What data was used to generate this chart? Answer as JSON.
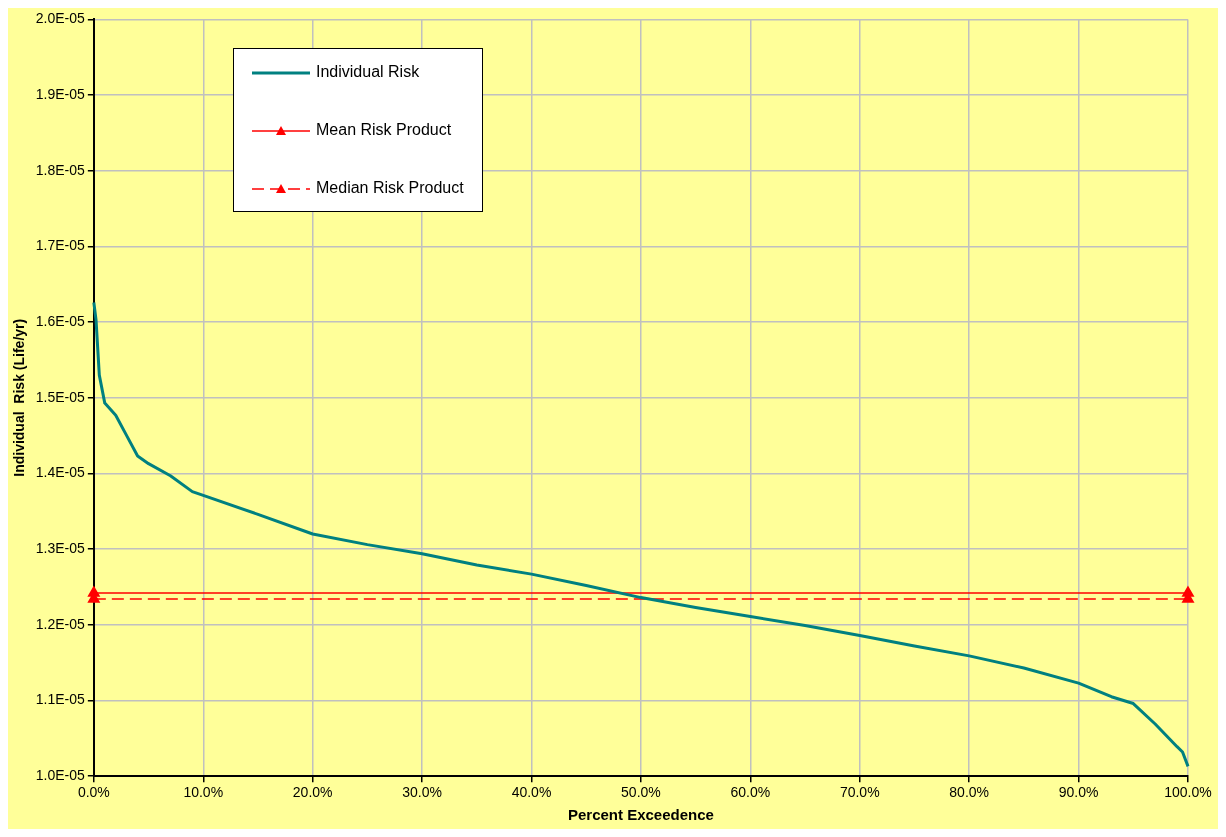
{
  "chart_data": {
    "type": "line",
    "xlabel": "Percent Exceedence",
    "ylabel": "Individual  Risk (Life/yr)",
    "xlim": [
      0,
      100
    ],
    "xticks": [
      {
        "value": 0,
        "label": "0.0%"
      },
      {
        "value": 10,
        "label": "10.0%"
      },
      {
        "value": 20,
        "label": "20.0%"
      },
      {
        "value": 30,
        "label": "30.0%"
      },
      {
        "value": 40,
        "label": "40.0%"
      },
      {
        "value": 50,
        "label": "50.0%"
      },
      {
        "value": 60,
        "label": "60.0%"
      },
      {
        "value": 70,
        "label": "70.0%"
      },
      {
        "value": 80,
        "label": "80.0%"
      },
      {
        "value": 90,
        "label": "90.0%"
      },
      {
        "value": 100,
        "label": "100.0%"
      }
    ],
    "ylim": [
      1e-05,
      2e-05
    ],
    "yticks": [
      {
        "value": 1e-05,
        "label": "1.0E-05"
      },
      {
        "value": 1.1e-05,
        "label": "1.1E-05"
      },
      {
        "value": 1.2e-05,
        "label": "1.2E-05"
      },
      {
        "value": 1.3e-05,
        "label": "1.3E-05"
      },
      {
        "value": 1.4e-05,
        "label": "1.4E-05"
      },
      {
        "value": 1.5e-05,
        "label": "1.5E-05"
      },
      {
        "value": 1.6e-05,
        "label": "1.6E-05"
      },
      {
        "value": 1.7e-05,
        "label": "1.7E-05"
      },
      {
        "value": 1.8e-05,
        "label": "1.8E-05"
      },
      {
        "value": 1.9e-05,
        "label": "1.9E-05"
      },
      {
        "value": 2e-05,
        "label": "2.0E-05"
      }
    ],
    "grid": true,
    "legend": "top left",
    "series": [
      {
        "name": "Individual Risk",
        "color": "#008080",
        "marker": "none",
        "line_style": "solid",
        "x": [
          0,
          0.2,
          0.5,
          1,
          2,
          3,
          4,
          5,
          7,
          9,
          10,
          15,
          20,
          25,
          30,
          35,
          40,
          45,
          50,
          55,
          60,
          65,
          70,
          75,
          80,
          85,
          90,
          93,
          95,
          97,
          99,
          99.5,
          100
        ],
        "values": [
          1.626e-05,
          1.603e-05,
          1.53e-05,
          1.493e-05,
          1.477e-05,
          1.45e-05,
          1.423e-05,
          1.413e-05,
          1.397e-05,
          1.376e-05,
          1.371e-05,
          1.346e-05,
          1.32e-05,
          1.306e-05,
          1.294e-05,
          1.279e-05,
          1.267e-05,
          1.252e-05,
          1.236e-05,
          1.223e-05,
          1.211e-05,
          1.199e-05,
          1.186e-05,
          1.172e-05,
          1.159e-05,
          1.143e-05,
          1.123e-05,
          1.105e-05,
          1.096e-05,
          1.069e-05,
          1.039e-05,
          1.032e-05,
          1.013e-05
        ]
      },
      {
        "name": "Mean Risk Product",
        "color": "#ff0000",
        "marker": "triangle",
        "line_style": "solid",
        "x": [
          0,
          100
        ],
        "values": [
          1.242e-05,
          1.242e-05
        ]
      },
      {
        "name": "Median Risk Product",
        "color": "#ff0000",
        "marker": "triangle",
        "line_style": "dashed",
        "x": [
          0,
          100
        ],
        "values": [
          1.234e-05,
          1.234e-05
        ]
      }
    ]
  }
}
